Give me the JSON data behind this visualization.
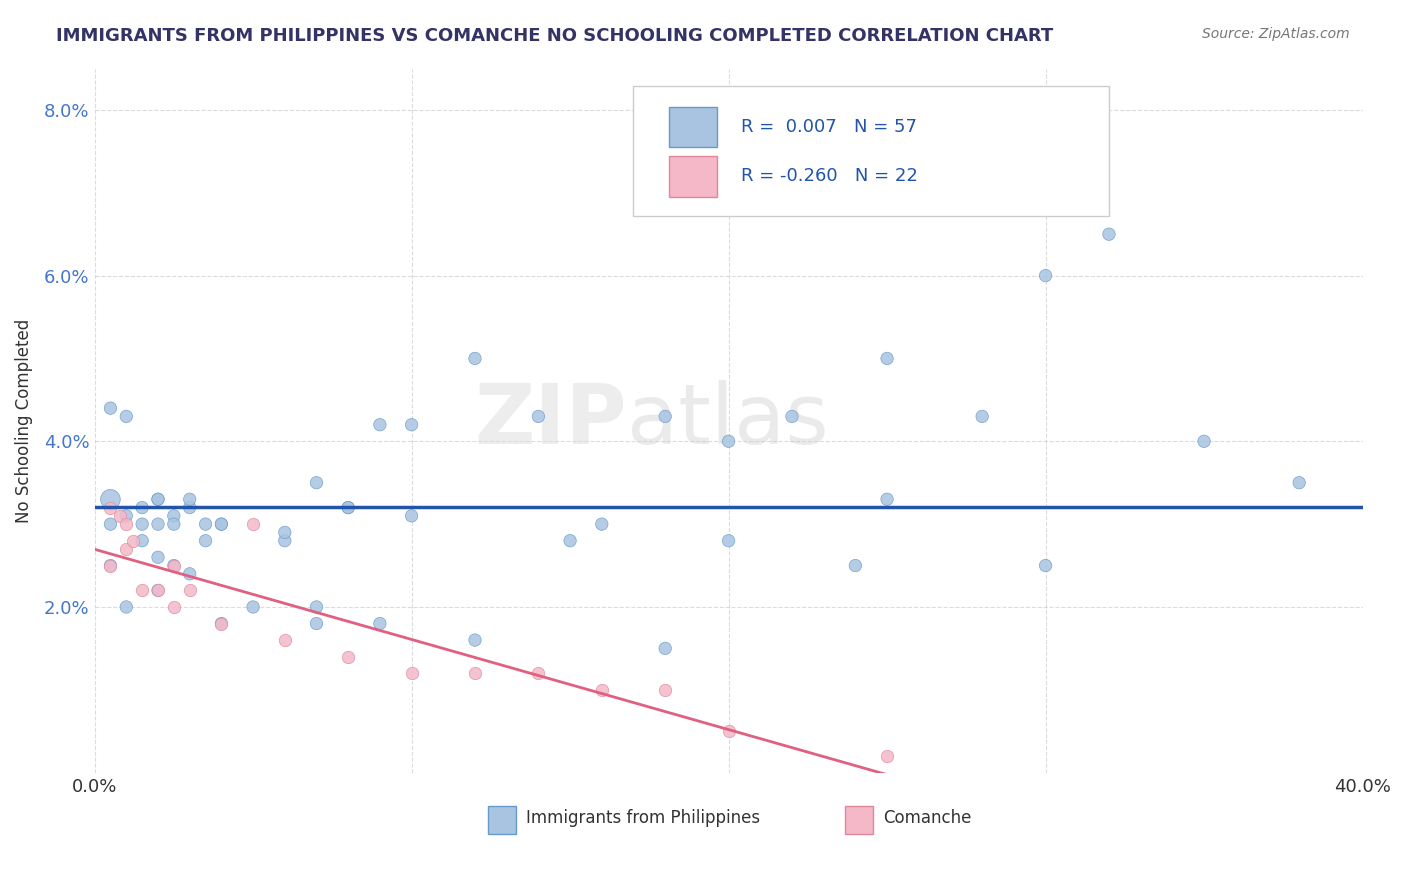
{
  "title": "IMMIGRANTS FROM PHILIPPINES VS COMANCHE NO SCHOOLING COMPLETED CORRELATION CHART",
  "source": "Source: ZipAtlas.com",
  "ylabel": "No Schooling Completed",
  "xlim": [
    0.0,
    0.4
  ],
  "ylim": [
    0.0,
    0.085
  ],
  "blue_color": "#a8c4e0",
  "pink_color": "#f4b8c8",
  "blue_edge": "#6699cc",
  "pink_edge": "#dd8899",
  "trend_blue": "#2255aa",
  "trend_pink": "#e06080",
  "title_color": "#333366",
  "source_color": "#777777",
  "legend_r1_val": "0.007",
  "legend_r1_n": "57",
  "legend_r2_val": "-0.260",
  "legend_r2_n": "22",
  "philippines_x": [
    0.005,
    0.01,
    0.015,
    0.015,
    0.02,
    0.02,
    0.025,
    0.025,
    0.03,
    0.035,
    0.005,
    0.01,
    0.02,
    0.03,
    0.04,
    0.06,
    0.07,
    0.08,
    0.09,
    0.1,
    0.12,
    0.14,
    0.16,
    0.18,
    0.2,
    0.22,
    0.25,
    0.28,
    0.3,
    0.32,
    0.35,
    0.38,
    0.005,
    0.02,
    0.04,
    0.06,
    0.08,
    0.1,
    0.15,
    0.2,
    0.25,
    0.01,
    0.02,
    0.03,
    0.04,
    0.05,
    0.07,
    0.09,
    0.12,
    0.18,
    0.24,
    0.3,
    0.005,
    0.015,
    0.025,
    0.035,
    0.07
  ],
  "philippines_y": [
    0.03,
    0.031,
    0.032,
    0.03,
    0.033,
    0.03,
    0.031,
    0.03,
    0.032,
    0.028,
    0.044,
    0.043,
    0.033,
    0.033,
    0.03,
    0.028,
    0.035,
    0.032,
    0.042,
    0.042,
    0.05,
    0.043,
    0.03,
    0.043,
    0.04,
    0.043,
    0.05,
    0.043,
    0.06,
    0.065,
    0.04,
    0.035,
    0.025,
    0.026,
    0.03,
    0.029,
    0.032,
    0.031,
    0.028,
    0.028,
    0.033,
    0.02,
    0.022,
    0.024,
    0.018,
    0.02,
    0.02,
    0.018,
    0.016,
    0.015,
    0.025,
    0.025,
    0.033,
    0.028,
    0.025,
    0.03,
    0.018
  ],
  "philippines_sizes": [
    80,
    80,
    80,
    80,
    80,
    80,
    80,
    80,
    80,
    80,
    80,
    80,
    80,
    80,
    80,
    80,
    80,
    80,
    80,
    80,
    80,
    80,
    80,
    80,
    80,
    80,
    80,
    80,
    80,
    80,
    80,
    80,
    80,
    80,
    80,
    80,
    80,
    80,
    80,
    80,
    80,
    80,
    80,
    80,
    80,
    80,
    80,
    80,
    80,
    80,
    80,
    80,
    200,
    80,
    80,
    80,
    80
  ],
  "comanche_x": [
    0.005,
    0.008,
    0.01,
    0.012,
    0.015,
    0.02,
    0.025,
    0.025,
    0.03,
    0.04,
    0.05,
    0.06,
    0.08,
    0.1,
    0.12,
    0.14,
    0.16,
    0.18,
    0.2,
    0.005,
    0.01,
    0.25
  ],
  "comanche_y": [
    0.025,
    0.031,
    0.027,
    0.028,
    0.022,
    0.022,
    0.02,
    0.025,
    0.022,
    0.018,
    0.03,
    0.016,
    0.014,
    0.012,
    0.012,
    0.012,
    0.01,
    0.01,
    0.005,
    0.032,
    0.03,
    0.002
  ]
}
